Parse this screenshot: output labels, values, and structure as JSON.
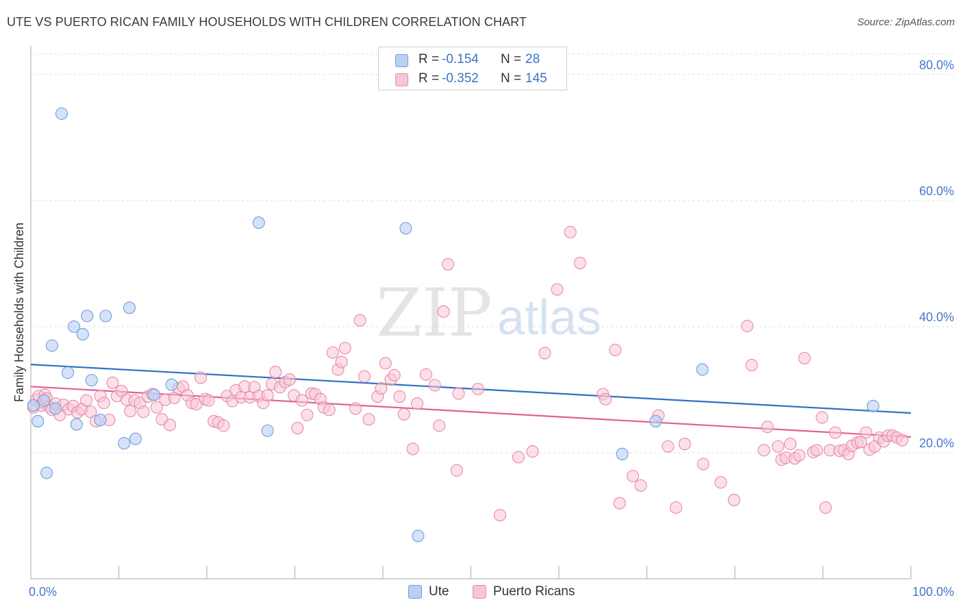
{
  "header": {
    "title": "UTE VS PUERTO RICAN FAMILY HOUSEHOLDS WITH CHILDREN CORRELATION CHART",
    "source": "Source: ZipAtlas.com"
  },
  "legend": {
    "rows": [
      {
        "r_label": "R =",
        "r_value": "-0.154",
        "n_label": "N =",
        "n_value": "28"
      },
      {
        "r_label": "R =",
        "r_value": "-0.352",
        "n_label": "N =",
        "n_value": "145"
      }
    ],
    "bottom": [
      {
        "label": "Ute"
      },
      {
        "label": "Puerto Ricans"
      }
    ]
  },
  "watermark": {
    "zip": "ZIP",
    "atlas": "atlas"
  },
  "colors": {
    "ute_fill": "#b8d0f4",
    "ute_stroke": "#6f9edc",
    "ute_line": "#2f6fc6",
    "pr_fill": "#f8c6d6",
    "pr_stroke": "#e889a8",
    "pr_line": "#e06090",
    "tick_text": "#4477cc",
    "grid": "#dcdcdc"
  },
  "chart_data": {
    "type": "scatter",
    "title": "UTE VS PUERTO RICAN FAMILY HOUSEHOLDS WITH CHILDREN CORRELATION CHART",
    "xlabel": "",
    "ylabel": "Family Households with Children",
    "xlim": [
      0,
      100
    ],
    "ylim": [
      0,
      84
    ],
    "x_tick_labels": [
      "0.0%",
      "100.0%"
    ],
    "y_ticks": [
      20,
      40,
      60,
      80
    ],
    "y_tick_labels": [
      "20.0%",
      "40.0%",
      "60.0%",
      "80.0%"
    ],
    "grid": "horizontal dashed",
    "series": [
      {
        "name": "Ute",
        "R": -0.154,
        "N": 28,
        "trend": [
          [
            0,
            34.0
          ],
          [
            100,
            26.3
          ]
        ],
        "points": [
          [
            0.3,
            27.5
          ],
          [
            0.8,
            25.0
          ],
          [
            1.5,
            28.3
          ],
          [
            1.8,
            16.8
          ],
          [
            2.4,
            37.0
          ],
          [
            2.8,
            27.0
          ],
          [
            3.5,
            73.8
          ],
          [
            4.2,
            32.7
          ],
          [
            4.9,
            40.0
          ],
          [
            5.2,
            24.5
          ],
          [
            5.9,
            38.8
          ],
          [
            6.4,
            41.7
          ],
          [
            6.9,
            31.5
          ],
          [
            7.9,
            25.2
          ],
          [
            8.5,
            41.7
          ],
          [
            10.6,
            21.5
          ],
          [
            11.2,
            43.0
          ],
          [
            11.9,
            22.2
          ],
          [
            14.0,
            29.2
          ],
          [
            16.0,
            30.8
          ],
          [
            25.9,
            56.5
          ],
          [
            26.9,
            23.5
          ],
          [
            42.6,
            55.6
          ],
          [
            44.0,
            6.8
          ],
          [
            67.2,
            19.8
          ],
          [
            71.0,
            25.0
          ],
          [
            76.3,
            33.2
          ],
          [
            95.7,
            27.4
          ]
        ]
      },
      {
        "name": "Puerto Ricans",
        "R": -0.352,
        "N": 145,
        "trend": [
          [
            0,
            30.5
          ],
          [
            100,
            22.5
          ]
        ],
        "points": [
          [
            0.3,
            27.2
          ],
          [
            0.6,
            28.4
          ],
          [
            0.9,
            29.0
          ],
          [
            1.2,
            27.5
          ],
          [
            1.4,
            28.0
          ],
          [
            1.6,
            29.2
          ],
          [
            1.8,
            28.6
          ],
          [
            2.1,
            27.3
          ],
          [
            2.4,
            26.8
          ],
          [
            2.8,
            27.8
          ],
          [
            3.3,
            26.0
          ],
          [
            3.7,
            27.6
          ],
          [
            4.3,
            26.9
          ],
          [
            4.8,
            27.4
          ],
          [
            5.3,
            26.4
          ],
          [
            5.8,
            26.9
          ],
          [
            6.3,
            28.3
          ],
          [
            6.8,
            26.5
          ],
          [
            7.4,
            25.0
          ],
          [
            7.9,
            29.0
          ],
          [
            8.3,
            27.9
          ],
          [
            8.9,
            25.2
          ],
          [
            9.3,
            31.1
          ],
          [
            9.8,
            29.0
          ],
          [
            10.3,
            29.8
          ],
          [
            10.9,
            28.4
          ],
          [
            11.3,
            26.6
          ],
          [
            11.8,
            28.3
          ],
          [
            12.4,
            27.9
          ],
          [
            12.8,
            26.5
          ],
          [
            13.3,
            28.9
          ],
          [
            13.8,
            29.3
          ],
          [
            14.3,
            27.2
          ],
          [
            14.9,
            25.3
          ],
          [
            15.3,
            28.4
          ],
          [
            15.8,
            24.4
          ],
          [
            16.3,
            28.7
          ],
          [
            16.8,
            30.2
          ],
          [
            17.3,
            30.5
          ],
          [
            17.8,
            29.1
          ],
          [
            18.3,
            27.9
          ],
          [
            18.8,
            27.7
          ],
          [
            19.3,
            31.9
          ],
          [
            19.8,
            28.5
          ],
          [
            20.2,
            28.3
          ],
          [
            20.8,
            25.0
          ],
          [
            21.3,
            24.8
          ],
          [
            21.9,
            24.3
          ],
          [
            22.3,
            29.0
          ],
          [
            22.9,
            28.2
          ],
          [
            23.3,
            29.9
          ],
          [
            23.9,
            28.8
          ],
          [
            24.3,
            30.5
          ],
          [
            24.9,
            28.8
          ],
          [
            25.4,
            30.4
          ],
          [
            25.9,
            29.0
          ],
          [
            26.4,
            27.9
          ],
          [
            26.9,
            29.1
          ],
          [
            27.4,
            30.9
          ],
          [
            27.8,
            32.8
          ],
          [
            28.3,
            30.4
          ],
          [
            28.9,
            31.2
          ],
          [
            29.4,
            31.6
          ],
          [
            29.9,
            29.1
          ],
          [
            30.3,
            23.9
          ],
          [
            30.8,
            28.3
          ],
          [
            31.4,
            26.0
          ],
          [
            31.9,
            29.4
          ],
          [
            32.3,
            29.3
          ],
          [
            32.9,
            28.5
          ],
          [
            33.3,
            27.2
          ],
          [
            33.9,
            26.8
          ],
          [
            34.3,
            35.9
          ],
          [
            34.9,
            33.2
          ],
          [
            35.3,
            34.4
          ],
          [
            35.7,
            36.6
          ],
          [
            36.9,
            27.0
          ],
          [
            37.4,
            41.0
          ],
          [
            37.9,
            32.1
          ],
          [
            38.4,
            25.3
          ],
          [
            39.4,
            28.9
          ],
          [
            39.8,
            30.2
          ],
          [
            40.3,
            34.2
          ],
          [
            40.9,
            31.6
          ],
          [
            41.3,
            32.3
          ],
          [
            41.9,
            28.9
          ],
          [
            42.4,
            26.1
          ],
          [
            43.4,
            20.6
          ],
          [
            43.9,
            27.8
          ],
          [
            44.9,
            32.4
          ],
          [
            45.9,
            30.7
          ],
          [
            46.4,
            24.3
          ],
          [
            46.9,
            42.4
          ],
          [
            47.4,
            49.9
          ],
          [
            48.4,
            17.2
          ],
          [
            48.6,
            29.4
          ],
          [
            50.8,
            30.1
          ],
          [
            53.3,
            10.1
          ],
          [
            55.4,
            19.3
          ],
          [
            57.0,
            20.2
          ],
          [
            58.4,
            35.8
          ],
          [
            59.8,
            45.9
          ],
          [
            61.3,
            55.0
          ],
          [
            62.4,
            50.1
          ],
          [
            65.0,
            29.3
          ],
          [
            65.3,
            28.5
          ],
          [
            66.4,
            36.3
          ],
          [
            66.9,
            12.0
          ],
          [
            68.4,
            16.3
          ],
          [
            69.3,
            14.8
          ],
          [
            71.3,
            25.9
          ],
          [
            72.4,
            21.0
          ],
          [
            73.3,
            11.3
          ],
          [
            74.3,
            21.4
          ],
          [
            76.4,
            18.2
          ],
          [
            78.4,
            15.3
          ],
          [
            79.9,
            12.5
          ],
          [
            81.4,
            40.1
          ],
          [
            81.9,
            33.9
          ],
          [
            83.3,
            20.4
          ],
          [
            83.7,
            24.1
          ],
          [
            84.9,
            21.0
          ],
          [
            85.3,
            18.9
          ],
          [
            85.8,
            19.2
          ],
          [
            86.3,
            21.4
          ],
          [
            86.8,
            19.1
          ],
          [
            87.3,
            19.6
          ],
          [
            87.9,
            35.0
          ],
          [
            88.9,
            20.1
          ],
          [
            89.3,
            20.4
          ],
          [
            89.9,
            25.6
          ],
          [
            90.3,
            11.3
          ],
          [
            90.8,
            20.4
          ],
          [
            91.4,
            23.2
          ],
          [
            91.9,
            20.3
          ],
          [
            92.4,
            20.4
          ],
          [
            92.9,
            19.8
          ],
          [
            93.3,
            21.1
          ],
          [
            93.9,
            21.6
          ],
          [
            94.3,
            21.7
          ],
          [
            94.9,
            23.2
          ],
          [
            95.3,
            20.5
          ],
          [
            95.9,
            21.0
          ],
          [
            96.4,
            22.4
          ],
          [
            96.9,
            21.8
          ],
          [
            97.4,
            22.7
          ],
          [
            97.9,
            22.7
          ],
          [
            98.4,
            22.4
          ],
          [
            99.0,
            22.0
          ]
        ]
      }
    ]
  }
}
